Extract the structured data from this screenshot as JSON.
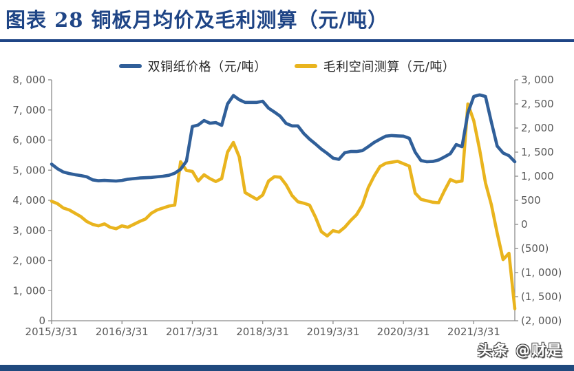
{
  "header": {
    "title": "图表 28  铜板月均价及毛利测算（元/吨）"
  },
  "footer": {
    "watermark": "头条 @财是"
  },
  "colors": {
    "title_navy": "#1F4586",
    "rule_navy": "#1F4586",
    "footer_navy": "#204A7E",
    "blue_line": "#305F99",
    "yellow_line": "#E9B41E",
    "axis_line_gray": "#8C8C8C",
    "label_gray": "#595959",
    "legend_text": "#262626"
  },
  "legend": [
    {
      "label": "双铜纸价格（元/吨）",
      "color": "#305F99"
    },
    {
      "label": "毛利空间测算（元/吨）",
      "color": "#E9B41E"
    }
  ],
  "chart_data": {
    "type": "line",
    "title": "铜板月均价及毛利测算（元/吨）",
    "legend_position": "top",
    "grid": false,
    "x_frequency": "monthly",
    "x_first": "2015/3/31",
    "x_last": "2021/10/31",
    "x_tick_labels": [
      "2015/3/31",
      "2016/3/31",
      "2017/3/31",
      "2018/3/31",
      "2019/3/31",
      "2020/3/31",
      "2021/3/31"
    ],
    "left_axis": {
      "min": 0,
      "max": 8000,
      "step": 1000,
      "tick_labels": [
        "8, 000",
        "7, 000",
        "6, 000",
        "5, 000",
        "4, 000",
        "3, 000",
        "2, 000",
        "1, 000",
        "0"
      ]
    },
    "right_axis": {
      "min": -2000,
      "max": 3000,
      "step": 500,
      "tick_labels": [
        "3, 000",
        "2, 500",
        "2, 000",
        "1, 500",
        "1, 000",
        "500",
        "0",
        "(500)",
        "(1, 000)",
        "(1, 500)",
        "(2, 000)"
      ]
    },
    "series": [
      {
        "name": "双铜纸价格（元/吨）",
        "axis": "left",
        "color": "#305F99",
        "values": [
          5200,
          5050,
          4940,
          4890,
          4850,
          4820,
          4780,
          4680,
          4650,
          4660,
          4650,
          4640,
          4660,
          4700,
          4720,
          4740,
          4750,
          4760,
          4780,
          4800,
          4830,
          4900,
          5030,
          5300,
          6450,
          6500,
          6650,
          6560,
          6580,
          6490,
          7200,
          7480,
          7340,
          7250,
          7250,
          7250,
          7290,
          7060,
          6930,
          6790,
          6550,
          6470,
          6470,
          6220,
          6030,
          5870,
          5700,
          5560,
          5400,
          5360,
          5580,
          5620,
          5620,
          5650,
          5780,
          5920,
          6030,
          6130,
          6150,
          6140,
          6130,
          6060,
          5600,
          5320,
          5280,
          5290,
          5340,
          5440,
          5550,
          5850,
          5780,
          6900,
          7450,
          7500,
          7450,
          6600,
          5800,
          5570,
          5480,
          5280
        ]
      },
      {
        "name": "毛利空间测算（元/吨）",
        "axis": "right",
        "color": "#E9B41E",
        "values": [
          480,
          430,
          340,
          300,
          230,
          160,
          60,
          0,
          -30,
          10,
          -60,
          -90,
          -30,
          -60,
          0,
          60,
          110,
          230,
          300,
          340,
          380,
          400,
          1300,
          1120,
          1100,
          900,
          1030,
          950,
          890,
          950,
          1500,
          1700,
          1400,
          660,
          590,
          520,
          610,
          900,
          990,
          980,
          820,
          600,
          470,
          440,
          400,
          150,
          -150,
          -240,
          -130,
          -160,
          -60,
          80,
          200,
          400,
          760,
          1000,
          1200,
          1270,
          1290,
          1310,
          1260,
          1210,
          650,
          520,
          490,
          460,
          450,
          700,
          930,
          880,
          900,
          2500,
          2150,
          1550,
          860,
          410,
          -180,
          -730,
          -600,
          -1750
        ]
      }
    ]
  }
}
